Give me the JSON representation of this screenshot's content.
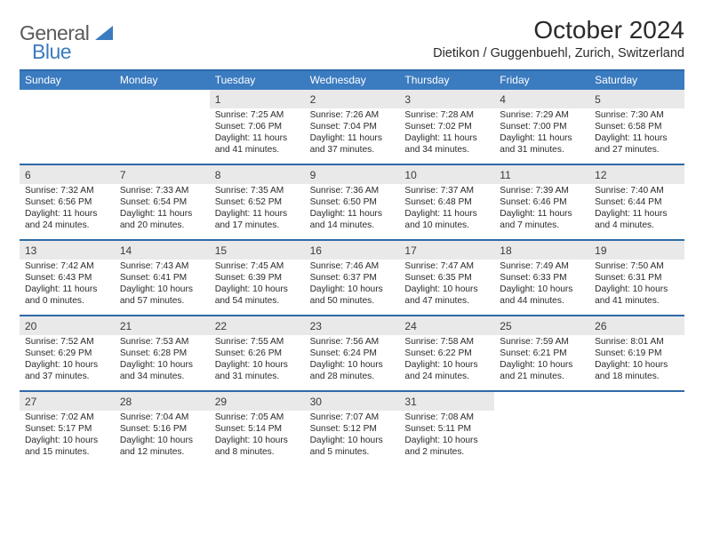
{
  "logo": {
    "general": "General",
    "blue": "Blue"
  },
  "title": "October 2024",
  "location": "Dietikon / Guggenbuehl, Zurich, Switzerland",
  "colors": {
    "header_bar": "#3b7bbf",
    "border": "#2f6aa8",
    "daynum_bg": "#e9e9e9",
    "text": "#2a2a2a",
    "logo_gray": "#5a5a5a"
  },
  "weekdays": [
    "Sunday",
    "Monday",
    "Tuesday",
    "Wednesday",
    "Thursday",
    "Friday",
    "Saturday"
  ],
  "weeks": [
    [
      null,
      null,
      {
        "n": "1",
        "sr": "Sunrise: 7:25 AM",
        "ss": "Sunset: 7:06 PM",
        "dl": "Daylight: 11 hours and 41 minutes."
      },
      {
        "n": "2",
        "sr": "Sunrise: 7:26 AM",
        "ss": "Sunset: 7:04 PM",
        "dl": "Daylight: 11 hours and 37 minutes."
      },
      {
        "n": "3",
        "sr": "Sunrise: 7:28 AM",
        "ss": "Sunset: 7:02 PM",
        "dl": "Daylight: 11 hours and 34 minutes."
      },
      {
        "n": "4",
        "sr": "Sunrise: 7:29 AM",
        "ss": "Sunset: 7:00 PM",
        "dl": "Daylight: 11 hours and 31 minutes."
      },
      {
        "n": "5",
        "sr": "Sunrise: 7:30 AM",
        "ss": "Sunset: 6:58 PM",
        "dl": "Daylight: 11 hours and 27 minutes."
      }
    ],
    [
      {
        "n": "6",
        "sr": "Sunrise: 7:32 AM",
        "ss": "Sunset: 6:56 PM",
        "dl": "Daylight: 11 hours and 24 minutes."
      },
      {
        "n": "7",
        "sr": "Sunrise: 7:33 AM",
        "ss": "Sunset: 6:54 PM",
        "dl": "Daylight: 11 hours and 20 minutes."
      },
      {
        "n": "8",
        "sr": "Sunrise: 7:35 AM",
        "ss": "Sunset: 6:52 PM",
        "dl": "Daylight: 11 hours and 17 minutes."
      },
      {
        "n": "9",
        "sr": "Sunrise: 7:36 AM",
        "ss": "Sunset: 6:50 PM",
        "dl": "Daylight: 11 hours and 14 minutes."
      },
      {
        "n": "10",
        "sr": "Sunrise: 7:37 AM",
        "ss": "Sunset: 6:48 PM",
        "dl": "Daylight: 11 hours and 10 minutes."
      },
      {
        "n": "11",
        "sr": "Sunrise: 7:39 AM",
        "ss": "Sunset: 6:46 PM",
        "dl": "Daylight: 11 hours and 7 minutes."
      },
      {
        "n": "12",
        "sr": "Sunrise: 7:40 AM",
        "ss": "Sunset: 6:44 PM",
        "dl": "Daylight: 11 hours and 4 minutes."
      }
    ],
    [
      {
        "n": "13",
        "sr": "Sunrise: 7:42 AM",
        "ss": "Sunset: 6:43 PM",
        "dl": "Daylight: 11 hours and 0 minutes."
      },
      {
        "n": "14",
        "sr": "Sunrise: 7:43 AM",
        "ss": "Sunset: 6:41 PM",
        "dl": "Daylight: 10 hours and 57 minutes."
      },
      {
        "n": "15",
        "sr": "Sunrise: 7:45 AM",
        "ss": "Sunset: 6:39 PM",
        "dl": "Daylight: 10 hours and 54 minutes."
      },
      {
        "n": "16",
        "sr": "Sunrise: 7:46 AM",
        "ss": "Sunset: 6:37 PM",
        "dl": "Daylight: 10 hours and 50 minutes."
      },
      {
        "n": "17",
        "sr": "Sunrise: 7:47 AM",
        "ss": "Sunset: 6:35 PM",
        "dl": "Daylight: 10 hours and 47 minutes."
      },
      {
        "n": "18",
        "sr": "Sunrise: 7:49 AM",
        "ss": "Sunset: 6:33 PM",
        "dl": "Daylight: 10 hours and 44 minutes."
      },
      {
        "n": "19",
        "sr": "Sunrise: 7:50 AM",
        "ss": "Sunset: 6:31 PM",
        "dl": "Daylight: 10 hours and 41 minutes."
      }
    ],
    [
      {
        "n": "20",
        "sr": "Sunrise: 7:52 AM",
        "ss": "Sunset: 6:29 PM",
        "dl": "Daylight: 10 hours and 37 minutes."
      },
      {
        "n": "21",
        "sr": "Sunrise: 7:53 AM",
        "ss": "Sunset: 6:28 PM",
        "dl": "Daylight: 10 hours and 34 minutes."
      },
      {
        "n": "22",
        "sr": "Sunrise: 7:55 AM",
        "ss": "Sunset: 6:26 PM",
        "dl": "Daylight: 10 hours and 31 minutes."
      },
      {
        "n": "23",
        "sr": "Sunrise: 7:56 AM",
        "ss": "Sunset: 6:24 PM",
        "dl": "Daylight: 10 hours and 28 minutes."
      },
      {
        "n": "24",
        "sr": "Sunrise: 7:58 AM",
        "ss": "Sunset: 6:22 PM",
        "dl": "Daylight: 10 hours and 24 minutes."
      },
      {
        "n": "25",
        "sr": "Sunrise: 7:59 AM",
        "ss": "Sunset: 6:21 PM",
        "dl": "Daylight: 10 hours and 21 minutes."
      },
      {
        "n": "26",
        "sr": "Sunrise: 8:01 AM",
        "ss": "Sunset: 6:19 PM",
        "dl": "Daylight: 10 hours and 18 minutes."
      }
    ],
    [
      {
        "n": "27",
        "sr": "Sunrise: 7:02 AM",
        "ss": "Sunset: 5:17 PM",
        "dl": "Daylight: 10 hours and 15 minutes."
      },
      {
        "n": "28",
        "sr": "Sunrise: 7:04 AM",
        "ss": "Sunset: 5:16 PM",
        "dl": "Daylight: 10 hours and 12 minutes."
      },
      {
        "n": "29",
        "sr": "Sunrise: 7:05 AM",
        "ss": "Sunset: 5:14 PM",
        "dl": "Daylight: 10 hours and 8 minutes."
      },
      {
        "n": "30",
        "sr": "Sunrise: 7:07 AM",
        "ss": "Sunset: 5:12 PM",
        "dl": "Daylight: 10 hours and 5 minutes."
      },
      {
        "n": "31",
        "sr": "Sunrise: 7:08 AM",
        "ss": "Sunset: 5:11 PM",
        "dl": "Daylight: 10 hours and 2 minutes."
      },
      null,
      null
    ]
  ]
}
